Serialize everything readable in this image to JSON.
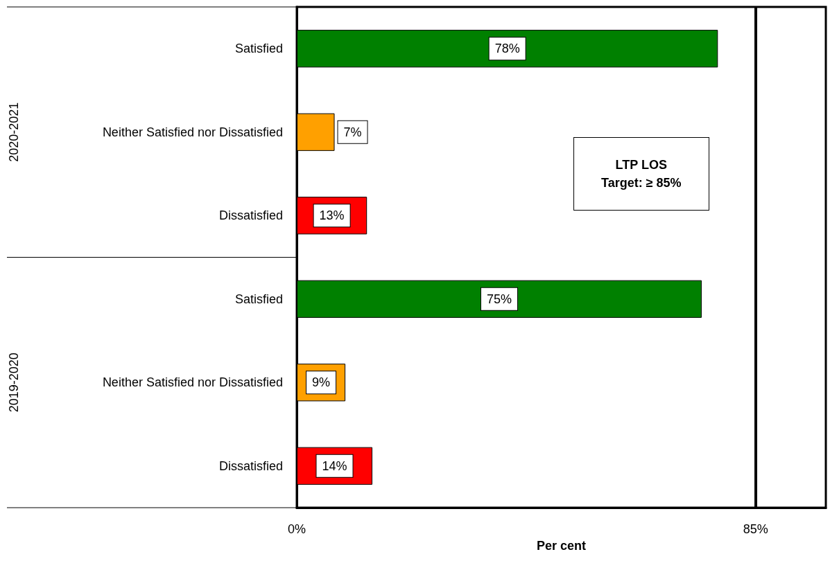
{
  "chart_data": {
    "type": "bar",
    "orientation": "horizontal",
    "xlabel": "Per cent",
    "categories": [
      "Satisfied",
      "Neither Satisfied nor Dissatisfied",
      "Dissatisfied",
      "Satisfied",
      "Neither Satisfied nor Dissatisfied",
      "Dissatisfied"
    ],
    "values": [
      78,
      7,
      13,
      75,
      9,
      14
    ],
    "colors": [
      "#008000",
      "#ffa000",
      "#ff0000",
      "#008000",
      "#ffa000",
      "#ff0000"
    ],
    "value_labels": [
      "78%",
      "7%",
      "13%",
      "75%",
      "9%",
      "14%"
    ],
    "xlim": [
      0,
      98
    ],
    "xticks": [
      {
        "value": 0,
        "label": "0%"
      },
      {
        "value": 85,
        "label": "85%"
      }
    ],
    "ref_lines": [
      {
        "axis": "x",
        "value": 85,
        "label": "LTP LOS\nTarget: ≥ 85%",
        "color": "#000000"
      }
    ],
    "annotations": [
      "2020-2021",
      "2019-2020"
    ]
  }
}
